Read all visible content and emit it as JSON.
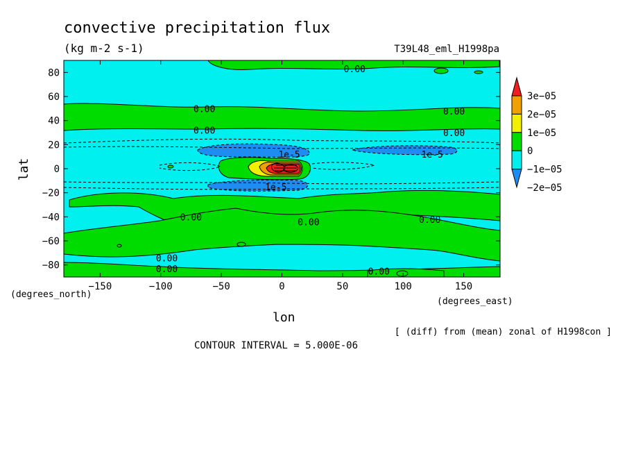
{
  "chart_data": {
    "type": "heatmap",
    "title": "convective precipitation flux",
    "units": "(kg m-2 s-1)",
    "experiment": "T39L48_eml_H1998pa",
    "xlabel": "lon",
    "ylabel": "lat",
    "x_units": "(degrees_east)",
    "y_units": "(degrees_north)",
    "xlim": [
      -180,
      180
    ],
    "ylim": [
      -90,
      90
    ],
    "x_ticks": [
      -150,
      -100,
      -50,
      0,
      50,
      100,
      150
    ],
    "y_ticks": [
      -80,
      -60,
      -40,
      -20,
      0,
      20,
      40,
      60,
      80
    ],
    "x_tick_labels": [
      "−150",
      "−100",
      "−50",
      "0",
      "50",
      "100",
      "150"
    ],
    "y_tick_labels": [
      "−80",
      "−60",
      "−40",
      "−20",
      "0",
      "20",
      "40",
      "60",
      "80"
    ],
    "levels": [
      -2e-05,
      -1e-05,
      0,
      1e-05,
      2e-05,
      3e-05
    ],
    "level_labels": [
      "−2e−05",
      "−1e−05",
      "0",
      "1e−05",
      "2e−05",
      "3e−05"
    ],
    "level_colors": [
      "#1e8cf0",
      "#00f0f0",
      "#00dc00",
      "#f0f000",
      "#f0a000",
      "#f01e1e"
    ],
    "contour_labels": [
      {
        "text": "0.00",
        "lon": 60,
        "lat": 83
      },
      {
        "text": "0.00",
        "lon": -64,
        "lat": 50
      },
      {
        "text": "0.00",
        "lon": 142,
        "lat": 48
      },
      {
        "text": "0.00",
        "lon": -64,
        "lat": 32
      },
      {
        "text": "0.00",
        "lon": 142,
        "lat": 30
      },
      {
        "text": "1e-5",
        "lon": 6,
        "lat": 12
      },
      {
        "text": "1e-5",
        "lon": 124,
        "lat": 12
      },
      {
        "text": "1e-5",
        "lon": -5,
        "lat": -15
      },
      {
        "text": "0.00",
        "lon": -75,
        "lat": -40
      },
      {
        "text": "0.00",
        "lon": 22,
        "lat": -44
      },
      {
        "text": "0.00",
        "lon": 122,
        "lat": -42
      },
      {
        "text": "0.00",
        "lon": -95,
        "lat": -74
      },
      {
        "text": "0.00",
        "lon": -95,
        "lat": -83
      },
      {
        "text": "0.00",
        "lon": 80,
        "lat": -85
      }
    ],
    "contour_interval": "CONTOUR INTERVAL = 5.000E-06",
    "footnote": "[ (diff) from (mean) zonal of H1998con ]"
  }
}
